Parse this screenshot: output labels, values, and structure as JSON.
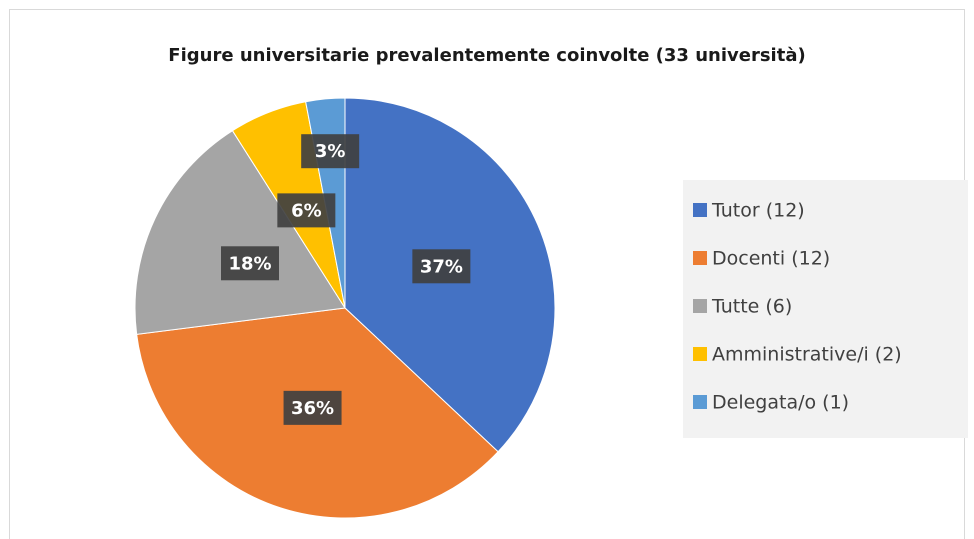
{
  "chart_data": {
    "type": "pie",
    "title": "Figure universitarie prevalentemente coinvolte (33 università)",
    "categories": [
      "Tutor (12)",
      "Docenti (12)",
      "Tutte (6)",
      "Amministrative/i (2)",
      "Delegata/o (1)"
    ],
    "values": [
      37,
      36,
      18,
      6,
      3
    ],
    "value_labels": [
      "37%",
      "36%",
      "18%",
      "6%",
      "3%"
    ],
    "colors": [
      "#4472c4",
      "#ed7d31",
      "#a5a5a5",
      "#ffc000",
      "#5b9bd5"
    ],
    "legend": "right"
  }
}
